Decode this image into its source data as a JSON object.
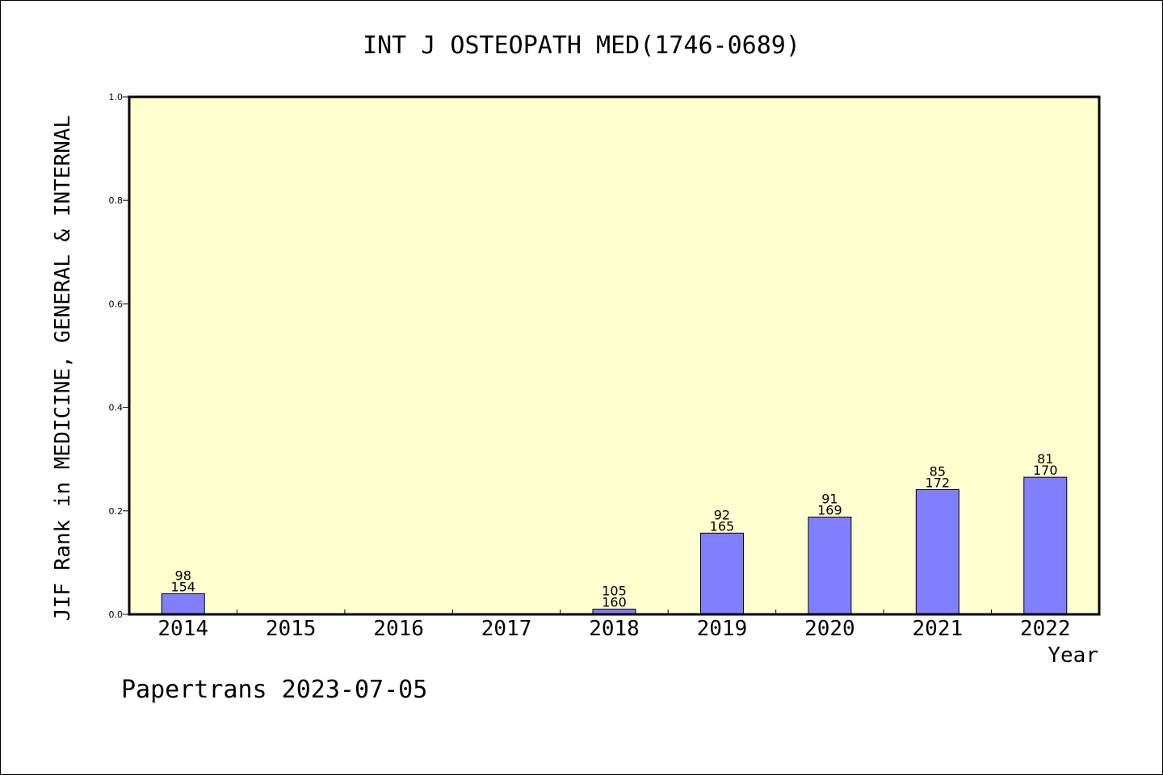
{
  "chart_data": {
    "type": "bar",
    "title": "INT J OSTEOPATH MED(1746-0689)",
    "xlabel": "Year",
    "ylabel": "JIF Rank in MEDICINE, GENERAL & INTERNAL",
    "ylim": [
      0,
      1.0
    ],
    "yticks": [
      "0.0",
      "0.2",
      "0.4",
      "0.6",
      "0.8",
      "1.0"
    ],
    "grid": false,
    "categories": [
      "2014",
      "2015",
      "2016",
      "2017",
      "2018",
      "2019",
      "2020",
      "2021",
      "2022"
    ],
    "values": [
      0.04,
      null,
      null,
      null,
      0.01,
      0.157,
      0.188,
      0.241,
      0.265
    ],
    "rank": [
      "98",
      "",
      "",
      "",
      "105",
      "92",
      "91",
      "85",
      "81"
    ],
    "total": [
      "154",
      "",
      "",
      "",
      "160",
      "165",
      "169",
      "172",
      "170"
    ],
    "colors": {
      "bar": "#8080ff",
      "plot_bg": "#ffffd0",
      "axis": "#000000"
    }
  },
  "footer": {
    "credit": "Papertrans 2023-07-05"
  }
}
